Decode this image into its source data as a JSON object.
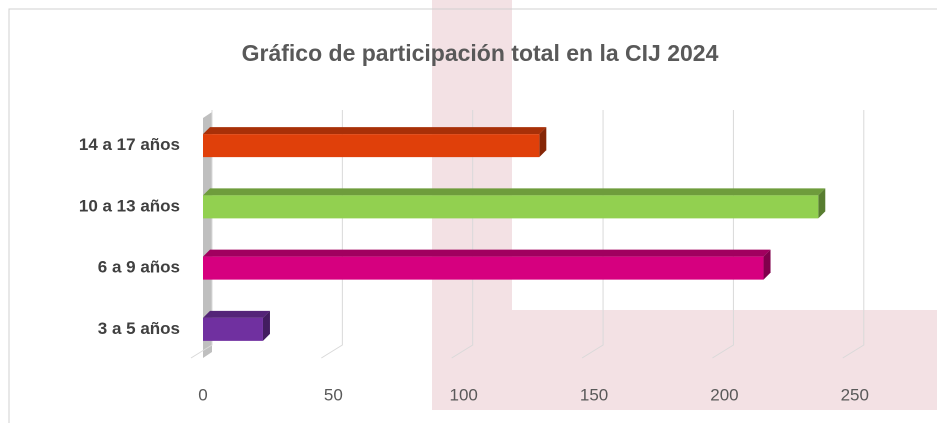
{
  "chart_data": {
    "type": "bar",
    "orientation": "horizontal",
    "title": "Gráfico de participación total en la CIJ 2024",
    "categories": [
      "14 a 17 años",
      "10 a 13 años",
      "6 a 9 años",
      "3 a 5 años"
    ],
    "values": [
      129,
      236,
      215,
      23
    ],
    "colors": [
      "#e0400a",
      "#92d050",
      "#d6007f",
      "#7030a0"
    ],
    "xlim": [
      0,
      280
    ],
    "xticks": [
      0,
      50,
      100,
      150,
      200,
      250
    ],
    "grid": true
  }
}
